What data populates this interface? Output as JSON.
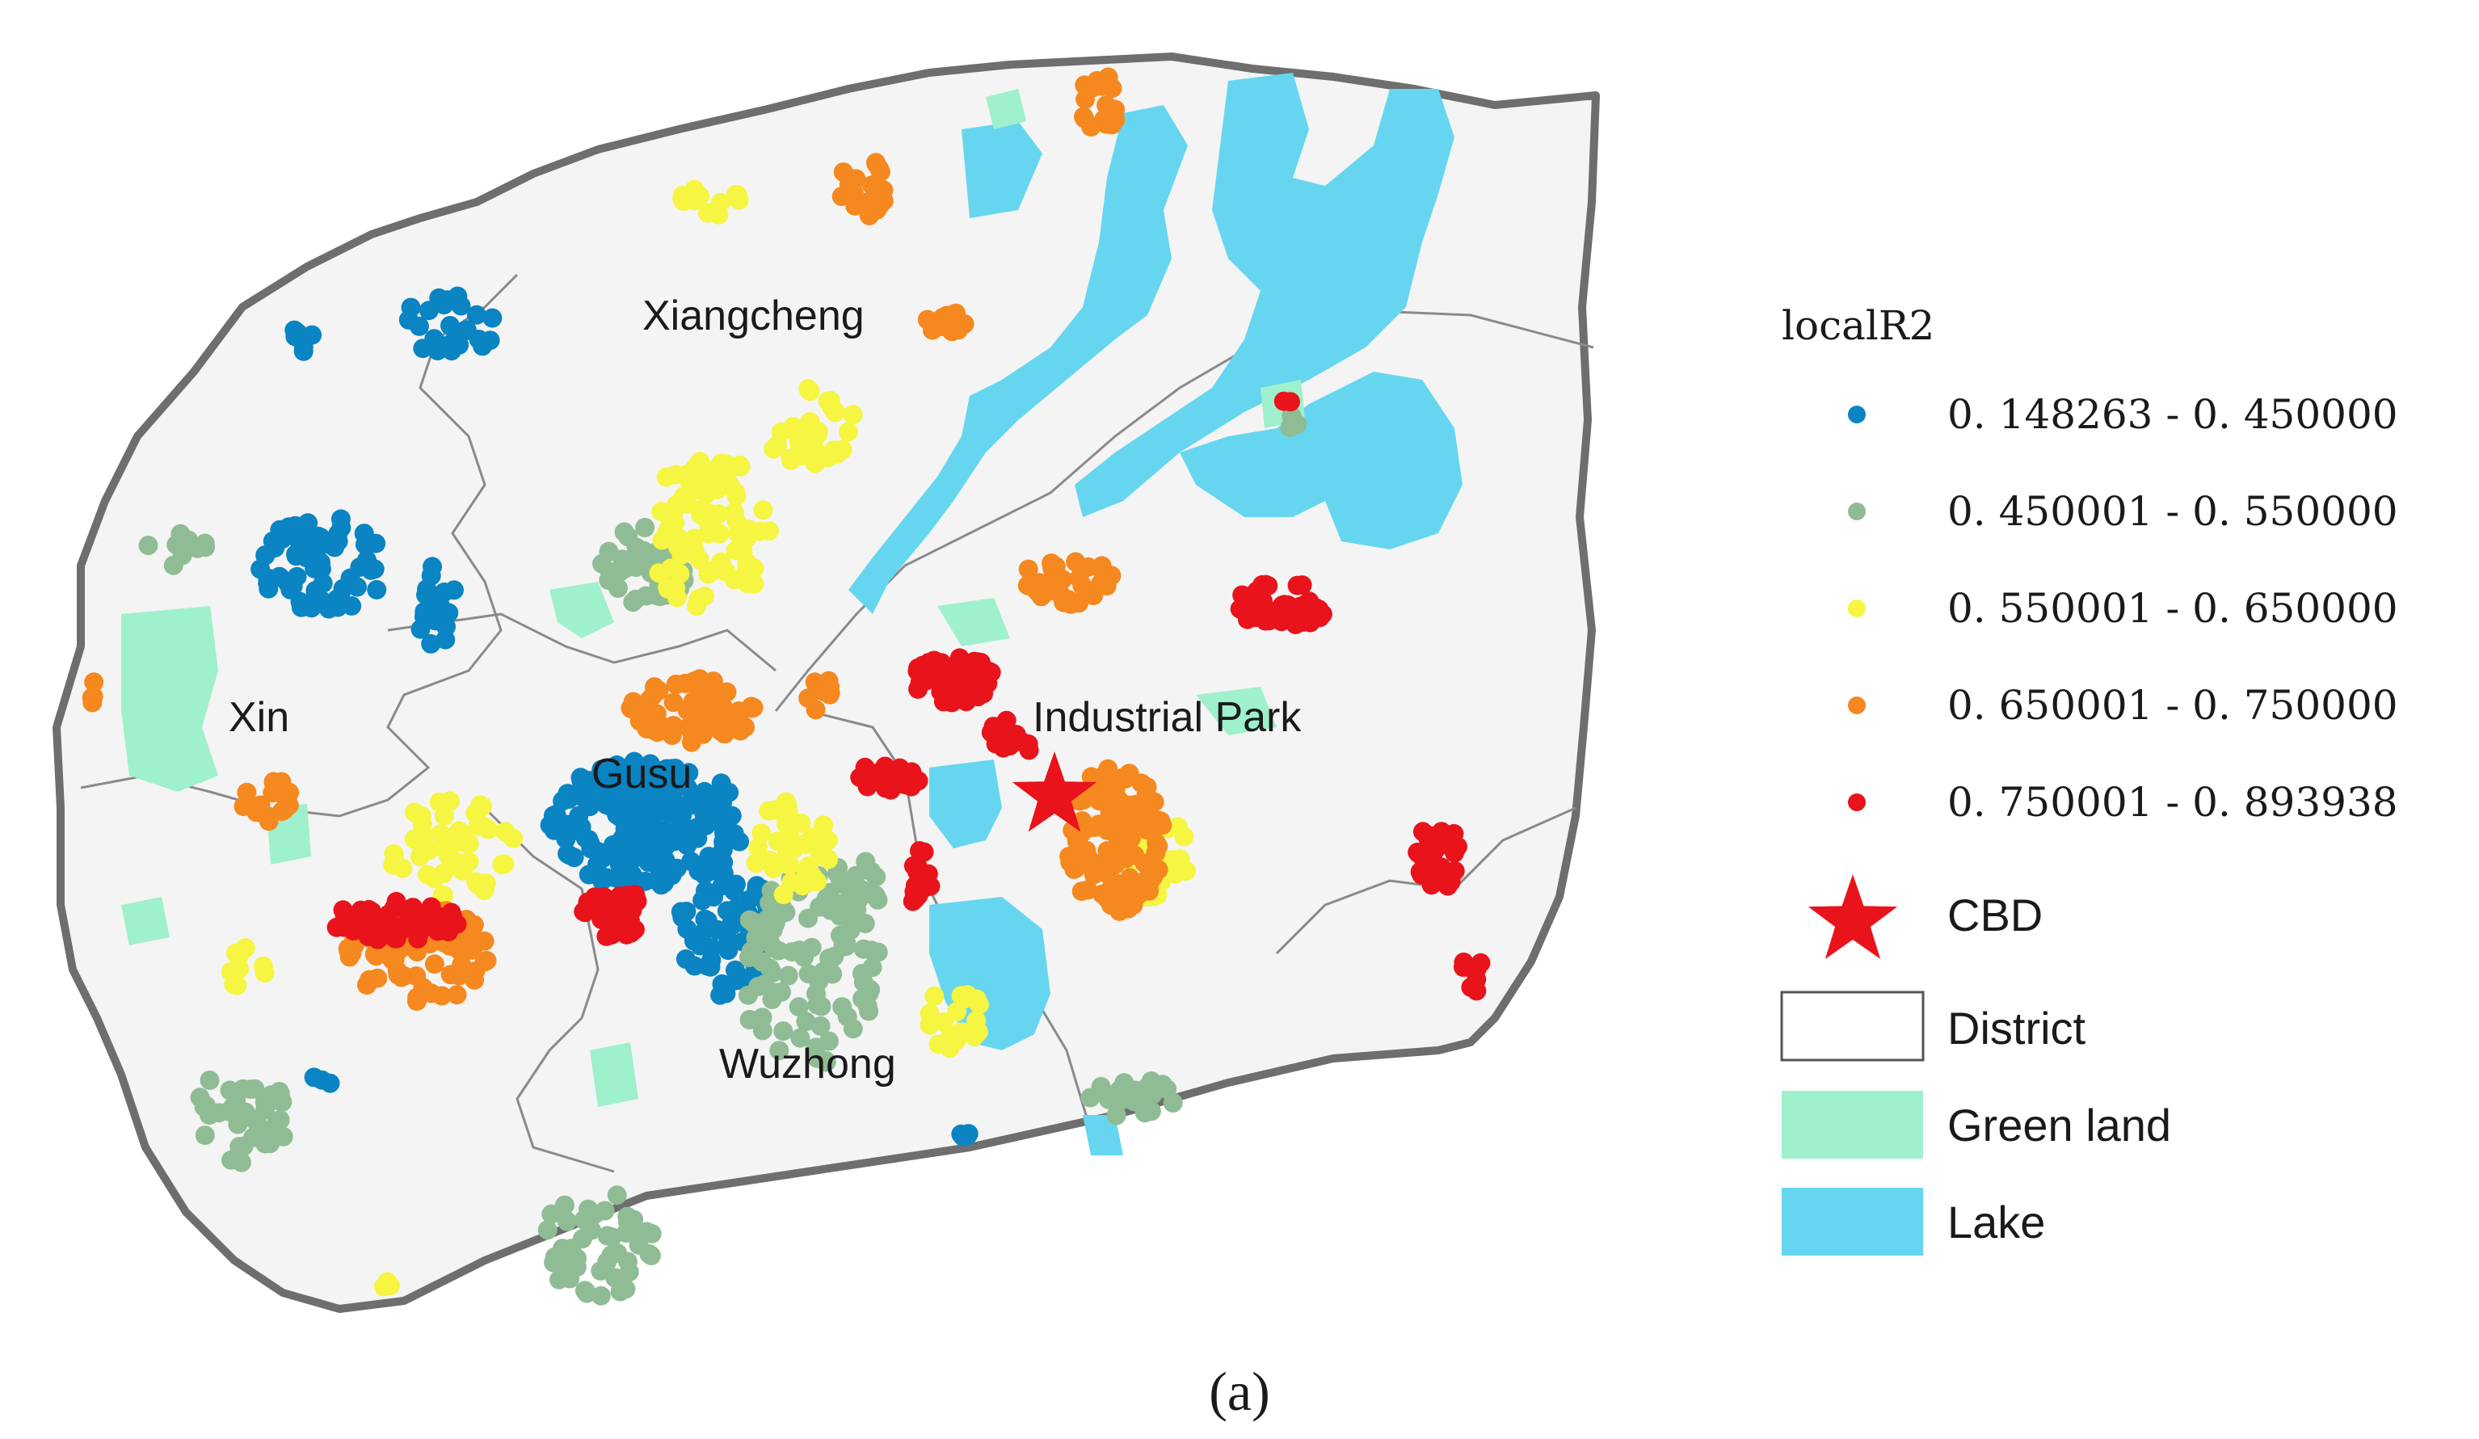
{
  "district_labels": {
    "xiangcheng": "Xiangcheng",
    "xin": "Xin",
    "gusu": "Gusu",
    "industrial_park": "Industrial Park",
    "wuzhong": "Wuzhong"
  },
  "legend": {
    "title": "localR2",
    "classes": [
      {
        "label": "0. 148263 - 0. 450000",
        "color": "#0a84c2"
      },
      {
        "label": "0. 450001 - 0. 550000",
        "color": "#8fbc94"
      },
      {
        "label": "0. 550001 - 0. 650000",
        "color": "#f5f542"
      },
      {
        "label": "0. 650001 - 0. 750000",
        "color": "#f5881f"
      },
      {
        "label": "0. 750001 - 0. 893938",
        "color": "#e8131b"
      }
    ],
    "cbd": {
      "label": "CBD",
      "color": "#e8131b",
      "icon": "star-icon"
    },
    "district": {
      "label": "District",
      "color": "#ffffff"
    },
    "green_land": {
      "label": "Green land",
      "color": "#9ff0cc"
    },
    "lake": {
      "label": "Lake",
      "color": "#66d6f0"
    }
  },
  "colors": {
    "land": "#f4f4f4",
    "boundary": "#6e6e6e",
    "district_line": "#8a8a8a"
  },
  "caption": "(a)"
}
